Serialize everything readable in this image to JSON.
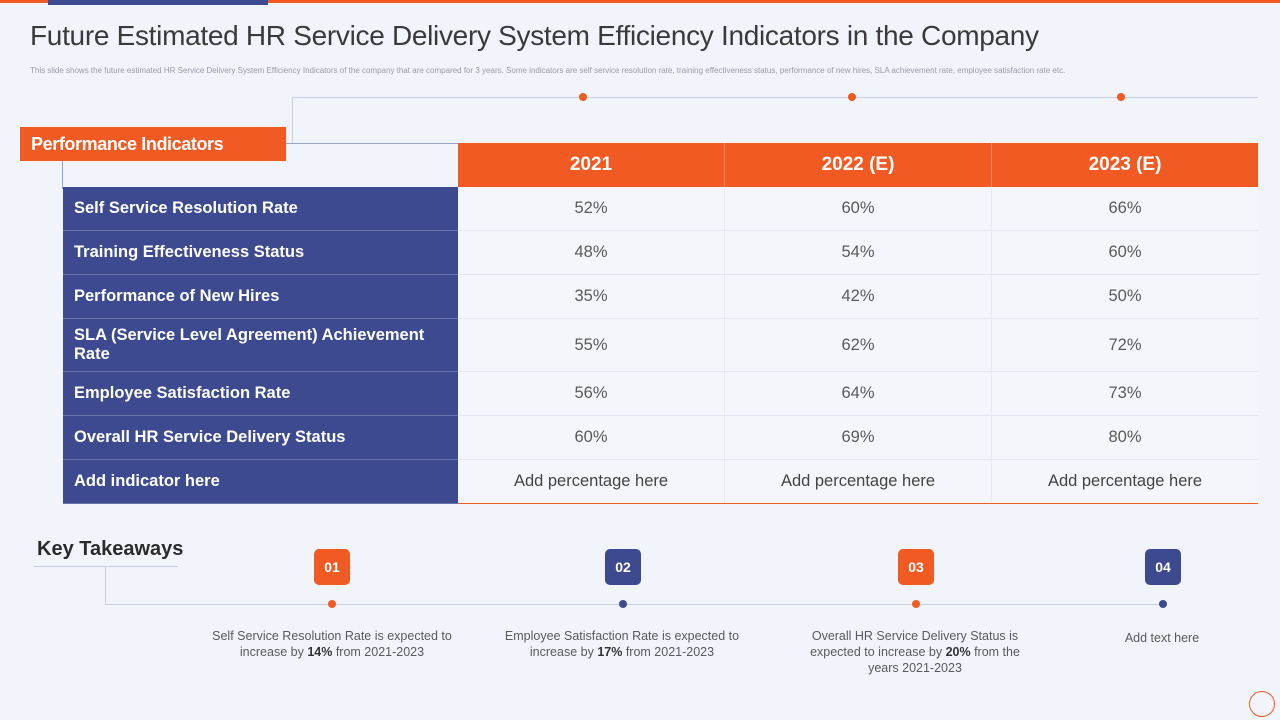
{
  "title": "Future Estimated HR Service Delivery System Efficiency Indicators in the Company",
  "subtitle": "This slide shows the future estimated HR Service Delivery System Efficiency Indicators of the company that are compared for 3 years. Some indicators are self service resolution rate, training effectiveness status, performance of new hires, SLA achievement rate, employee satisfaction rate etc.",
  "table": {
    "label_header": "Performance Indicators",
    "columns": [
      "2021",
      "2022 (E)",
      "2023 (E)"
    ],
    "rows": [
      {
        "label": "Self Service Resolution Rate",
        "values": [
          "52%",
          "60%",
          "66%"
        ]
      },
      {
        "label": "Training Effectiveness Status",
        "values": [
          "48%",
          "54%",
          "60%"
        ]
      },
      {
        "label": "Performance of New Hires",
        "values": [
          "35%",
          "42%",
          "50%"
        ]
      },
      {
        "label": "SLA (Service Level Agreement) Achievement Rate",
        "values": [
          "55%",
          "62%",
          "72%"
        ]
      },
      {
        "label": "Employee Satisfaction Rate",
        "values": [
          "56%",
          "64%",
          "73%"
        ]
      },
      {
        "label": "Overall HR Service Delivery Status",
        "values": [
          "60%",
          "69%",
          "80%"
        ]
      },
      {
        "label": "Add indicator here",
        "values": [
          "Add percentage here",
          "Add percentage here",
          "Add percentage here"
        ]
      }
    ]
  },
  "takeaways": {
    "title": "Key Takeaways",
    "items": [
      {
        "number": "01",
        "color": "#f15a22",
        "text_before": "Self Service Resolution Rate is expected to increase by ",
        "highlight": "14%",
        "text_after": " from 2021-2023"
      },
      {
        "number": "02",
        "color": "#3e4a8f",
        "text_before": "Employee Satisfaction Rate is expected to increase by ",
        "highlight": "17%",
        "text_after": " from 2021-2023"
      },
      {
        "number": "03",
        "color": "#f15a22",
        "text_before": "Overall HR Service Delivery Status is expected to increase by ",
        "highlight": "20%",
        "text_after": " from the years 2021-2023"
      },
      {
        "number": "04",
        "color": "#3e4a8f",
        "text_before": "Add text here",
        "highlight": "",
        "text_after": ""
      }
    ]
  },
  "colors": {
    "accent": "#f15a22",
    "navy": "#3e4a8f",
    "background": "#f1f4fb"
  }
}
